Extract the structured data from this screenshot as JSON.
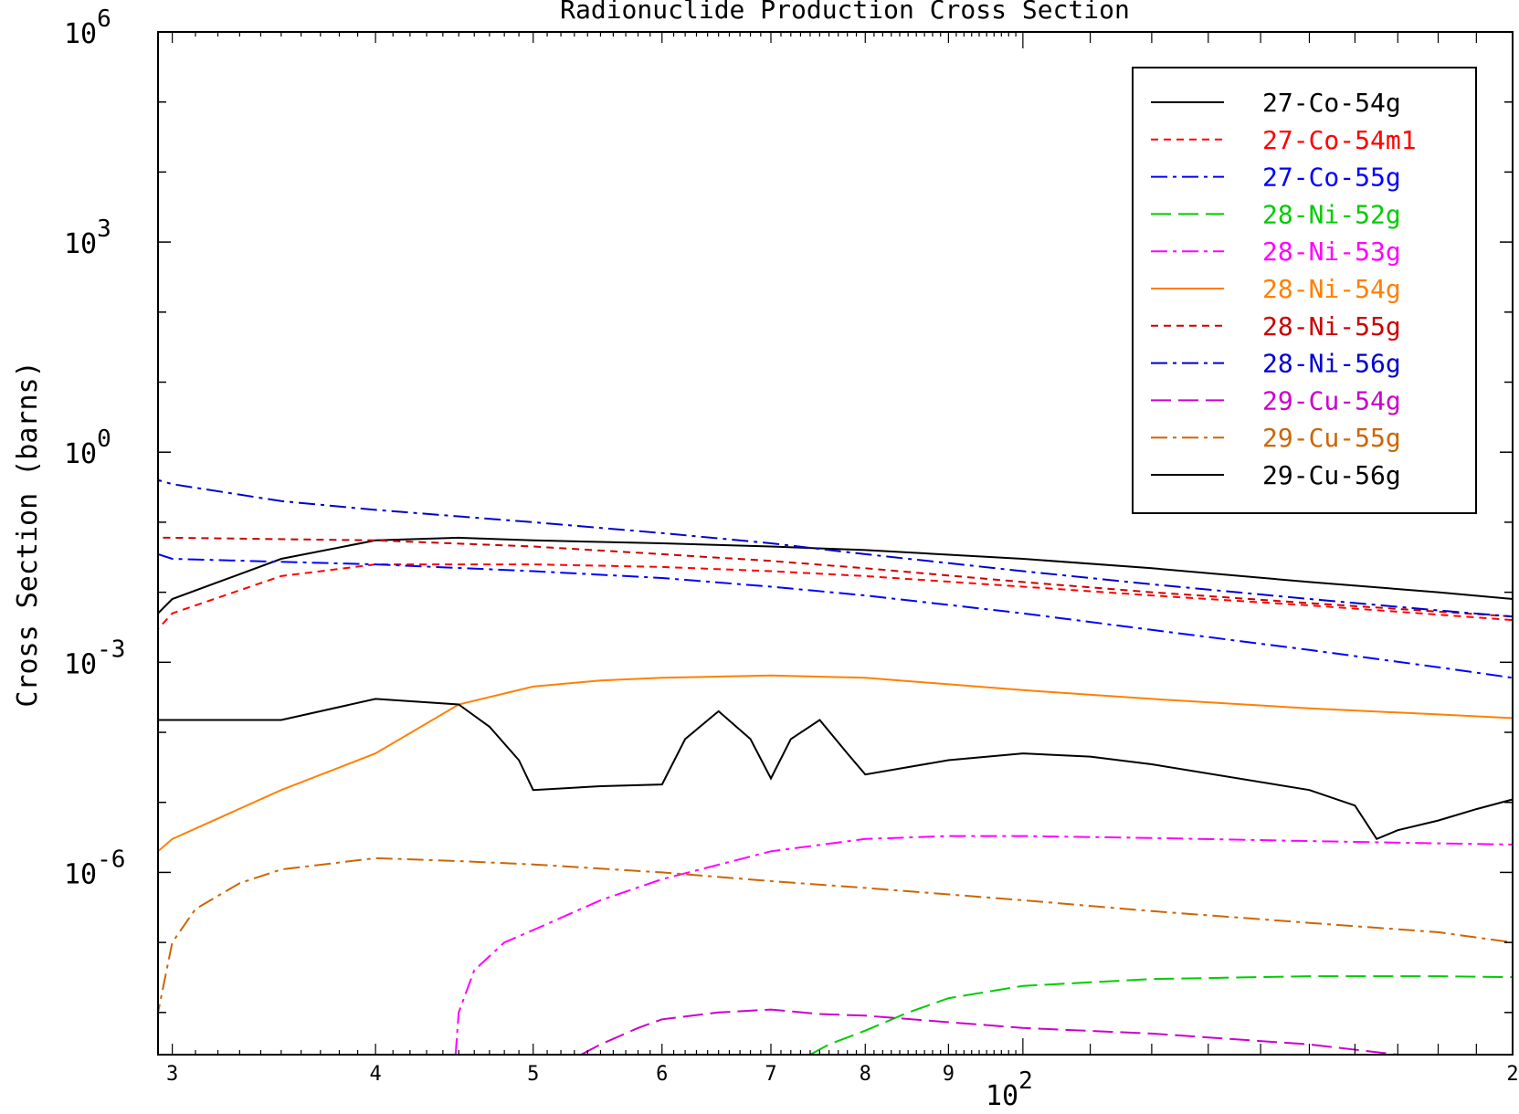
{
  "chart_data": {
    "type": "line",
    "title": "Radionuclide Production Cross Section",
    "xlabel": "",
    "ylabel": "Cross Section (barns)",
    "x_scale": "log",
    "y_scale": "log",
    "xlim": [
      29.4,
      200
    ],
    "ylim": [
      2.5e-09,
      1000000.0
    ],
    "x_tick_labels": [
      {
        "value": 30,
        "label": "3"
      },
      {
        "value": 40,
        "label": "4"
      },
      {
        "value": 50,
        "label": "5"
      },
      {
        "value": 60,
        "label": "6"
      },
      {
        "value": 70,
        "label": "7"
      },
      {
        "value": 80,
        "label": "8"
      },
      {
        "value": 90,
        "label": "9"
      },
      {
        "value": 200,
        "label": "2"
      }
    ],
    "x_decade_label": {
      "base": "10",
      "exp": "2",
      "value": 100
    },
    "y_tick_labels": [
      {
        "value": 1000000.0,
        "base": "10",
        "exp": "6"
      },
      {
        "value": 1000.0,
        "base": "10",
        "exp": "3"
      },
      {
        "value": 1,
        "base": "10",
        "exp": "0"
      },
      {
        "value": 0.001,
        "base": "10",
        "exp": "-3"
      },
      {
        "value": 1e-06,
        "base": "10",
        "exp": "-6"
      }
    ],
    "legend_position": "top-right",
    "grid": false,
    "series": [
      {
        "name": "27-Co-54g",
        "color": "#000000",
        "dash": "solid",
        "x": [
          29.4,
          29.4,
          30,
          35,
          40,
          45,
          50,
          60,
          70,
          80,
          100,
          120,
          150,
          180,
          200
        ],
        "y": [
          1e-09,
          0.005,
          0.008,
          0.03,
          0.055,
          0.06,
          0.055,
          0.05,
          0.045,
          0.04,
          0.03,
          0.022,
          0.014,
          0.01,
          0.008
        ]
      },
      {
        "name": "27-Co-54m1",
        "color": "#ff0000",
        "dash": "dash",
        "x": [
          29.4,
          29.4,
          30,
          35,
          40,
          50,
          60,
          70,
          80,
          100,
          120,
          150,
          180,
          200
        ],
        "y": [
          1e-09,
          0.003,
          0.005,
          0.017,
          0.025,
          0.025,
          0.023,
          0.02,
          0.017,
          0.012,
          0.009,
          0.0065,
          0.0048,
          0.004
        ]
      },
      {
        "name": "27-Co-55g",
        "color": "#0000ff",
        "dash": "dashdot",
        "x": [
          29.4,
          29.4,
          30,
          40,
          50,
          60,
          70,
          80,
          100,
          120,
          150,
          180,
          200
        ],
        "y": [
          1e-09,
          0.035,
          0.03,
          0.025,
          0.02,
          0.016,
          0.012,
          0.009,
          0.005,
          0.0029,
          0.0015,
          0.00085,
          0.0006
        ]
      },
      {
        "name": "28-Ni-52g",
        "color": "#00cc00",
        "dash": "longdash",
        "x": [
          74,
          76,
          80,
          85,
          90,
          100,
          120,
          150,
          180,
          200
        ],
        "y": [
          2.5e-09,
          3.5e-09,
          5.5e-09,
          1e-08,
          1.6e-08,
          2.4e-08,
          3e-08,
          3.3e-08,
          3.3e-08,
          3.2e-08
        ]
      },
      {
        "name": "28-Ni-53g",
        "color": "#ff00ff",
        "dash": "dashdot",
        "x": [
          44.8,
          45,
          46,
          48,
          50,
          55,
          60,
          70,
          80,
          90,
          100,
          120,
          150,
          180,
          200
        ],
        "y": [
          2.5e-09,
          1e-08,
          4e-08,
          1e-07,
          1.5e-07,
          4e-07,
          8e-07,
          2e-06,
          3e-06,
          3.3e-06,
          3.3e-06,
          3.1e-06,
          2.8e-06,
          2.6e-06,
          2.5e-06
        ]
      },
      {
        "name": "28-Ni-54g",
        "color": "#ff8000",
        "dash": "solid",
        "x": [
          29.4,
          29.4,
          30,
          35,
          40,
          45,
          50,
          55,
          60,
          70,
          80,
          100,
          120,
          150,
          180,
          200
        ],
        "y": [
          1e-09,
          2e-06,
          3e-06,
          1.5e-05,
          5e-05,
          0.00025,
          0.00045,
          0.00055,
          0.0006,
          0.00065,
          0.0006,
          0.0004,
          0.0003,
          0.00022,
          0.00018,
          0.00016
        ]
      },
      {
        "name": "28-Ni-55g",
        "color": "#cc0000",
        "dash": "dash",
        "x": [
          29.4,
          29.4,
          30,
          40,
          50,
          60,
          70,
          80,
          100,
          120,
          150,
          180,
          200
        ],
        "y": [
          1e-09,
          0.06,
          0.06,
          0.055,
          0.045,
          0.035,
          0.028,
          0.022,
          0.014,
          0.01,
          0.007,
          0.0053,
          0.0045
        ]
      },
      {
        "name": "28-Ni-56g",
        "color": "#0000cc",
        "dash": "dashdot",
        "x": [
          29.4,
          29.4,
          30,
          35,
          40,
          50,
          60,
          70,
          80,
          100,
          120,
          150,
          180,
          200
        ],
        "y": [
          1e-09,
          0.4,
          0.35,
          0.2,
          0.15,
          0.1,
          0.07,
          0.05,
          0.035,
          0.02,
          0.013,
          0.008,
          0.0055,
          0.0045
        ]
      },
      {
        "name": "29-Cu-54g",
        "color": "#cc00cc",
        "dash": "longdash",
        "x": [
          53.5,
          55,
          58,
          60,
          65,
          70,
          75,
          80,
          100,
          120,
          150,
          170
        ],
        "y": [
          2.5e-09,
          3.5e-09,
          6e-09,
          8e-09,
          1e-08,
          1.1e-08,
          9.5e-09,
          9e-09,
          6e-09,
          5e-09,
          3.5e-09,
          2.5e-09
        ]
      },
      {
        "name": "29-Cu-55g",
        "color": "#cc6600",
        "dash": "dashdot",
        "x": [
          29.4,
          29.4,
          30,
          31,
          33,
          35,
          40,
          45,
          50,
          60,
          70,
          80,
          100,
          120,
          150,
          180,
          200
        ],
        "y": [
          1e-09,
          1e-08,
          1e-07,
          3e-07,
          7e-07,
          1.1e-06,
          1.6e-06,
          1.45e-06,
          1.3e-06,
          1e-06,
          7.5e-07,
          6e-07,
          4e-07,
          2.8e-07,
          1.9e-07,
          1.4e-07,
          1e-07
        ]
      },
      {
        "name": "29-Cu-56g",
        "color": "#000000",
        "dash": "solid",
        "x": [
          29.4,
          29.4,
          30,
          35,
          40,
          45,
          47,
          49,
          50,
          55,
          60,
          62,
          65,
          68,
          70,
          72,
          75,
          78,
          80,
          90,
          100,
          110,
          120,
          150,
          160,
          165,
          170,
          180,
          190,
          200
        ],
        "y": [
          1e-09,
          0.00015,
          0.00015,
          0.00015,
          0.0003,
          0.00025,
          0.00012,
          4e-05,
          1.5e-05,
          1.7e-05,
          1.8e-05,
          8e-05,
          0.0002,
          8e-05,
          2.2e-05,
          8e-05,
          0.00015,
          5e-05,
          2.5e-05,
          4e-05,
          5e-05,
          4.5e-05,
          3.5e-05,
          1.5e-05,
          9e-06,
          3e-06,
          4e-06,
          5.5e-06,
          8e-06,
          1.1e-05
        ]
      }
    ]
  }
}
